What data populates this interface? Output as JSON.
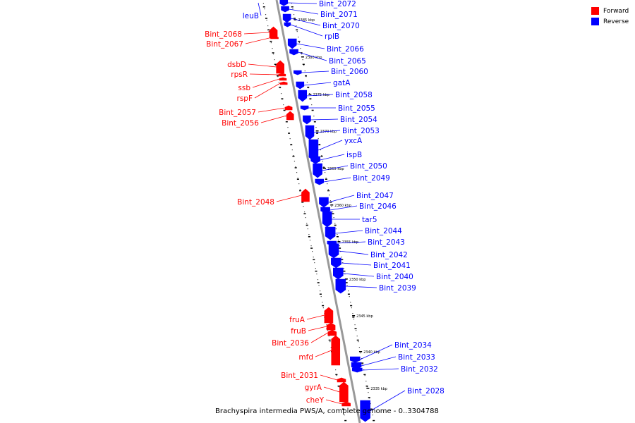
{
  "caption": "Brachyspira intermedia PWS/A, complete genome - 0..3304788",
  "legend": {
    "forward": {
      "label": "Forward",
      "color": "#ff0000"
    },
    "reverse": {
      "label": "Reverse",
      "color": "#0000ff"
    }
  },
  "backbone_color": "#999999",
  "ticks": [
    "2385 kbp",
    "2380 kbp",
    "2375 kbp",
    "2370 kbp",
    "2365 kbp",
    "2360 kbp",
    "2355 kbp",
    "2350 kbp",
    "2345 kbp",
    "2340 kbp",
    "2335 kbp"
  ],
  "forward_genes": [
    "Bint_2068",
    "Bint_2067",
    "dsbD",
    "rpsR",
    "ssb",
    "rspF",
    "Bint_2057",
    "Bint_2056",
    "Bint_2048",
    "fruA",
    "fruB",
    "Bint_2036",
    "mfd",
    "Bint_2031",
    "gyrA",
    "cheY"
  ],
  "reverse_genes": [
    "leuB",
    "Bint_2072",
    "Bint_2071",
    "Bint_2070",
    "rplB",
    "Bint_2066",
    "Bint_2065",
    "Bint_2060",
    "gatA",
    "Bint_2058",
    "Bint_2055",
    "Bint_2054",
    "Bint_2053",
    "yxcA",
    "ispB",
    "Bint_2050",
    "Bint_2049",
    "Bint_2047",
    "Bint_2046",
    "tar5",
    "Bint_2044",
    "Bint_2043",
    "Bint_2042",
    "Bint_2041",
    "Bint_2040",
    "Bint_2039",
    "Bint_2034",
    "Bint_2033",
    "Bint_2032",
    "Bint_2028"
  ]
}
